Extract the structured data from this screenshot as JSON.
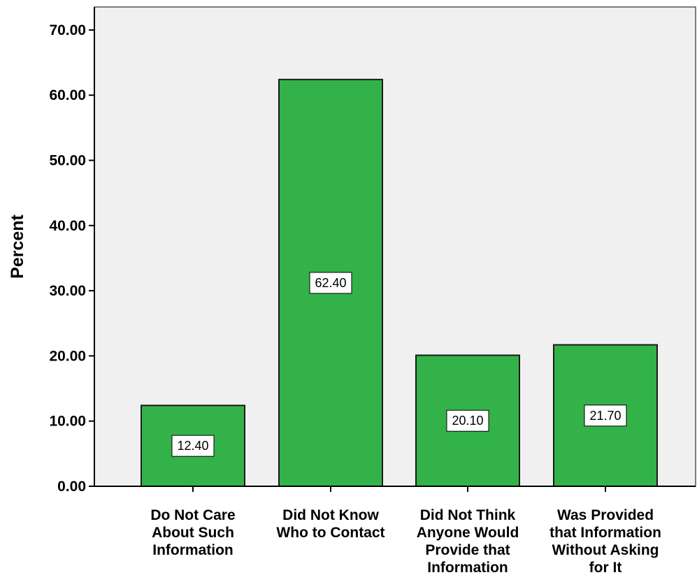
{
  "chart_data": {
    "type": "bar",
    "title": "",
    "xlabel": "",
    "ylabel": "Percent",
    "ylim": [
      0,
      70
    ],
    "y_ticks": [
      "0.00",
      "10.00",
      "20.00",
      "30.00",
      "40.00",
      "50.00",
      "60.00",
      "70.00"
    ],
    "categories": [
      [
        "Do Not Care",
        "About Such",
        "Information"
      ],
      [
        "Did Not Know",
        "Who to Contact"
      ],
      [
        "Did Not Think",
        "Anyone Would",
        "Provide that",
        "Information"
      ],
      [
        "Was Provided",
        "that Information",
        "Without Asking",
        "for It"
      ]
    ],
    "values": [
      12.4,
      62.4,
      20.1,
      21.7
    ],
    "data_labels": [
      "12.40",
      "62.40",
      "20.10",
      "21.70"
    ],
    "colors": {
      "bar_fill": "#33b249",
      "bar_stroke": "#1a1a1a",
      "plot_background": "#f0f0f0",
      "label_box_fill": "#ffffff"
    },
    "grid": false,
    "legend": "none"
  }
}
